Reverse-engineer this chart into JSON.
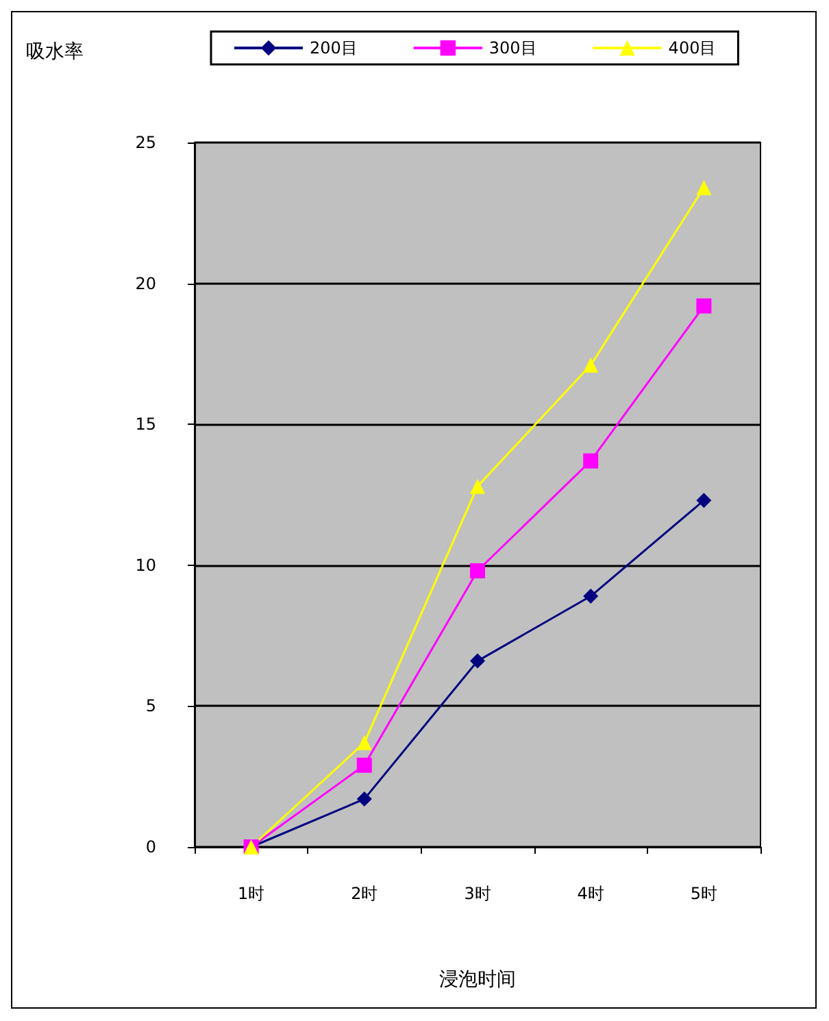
{
  "chart_data": {
    "type": "line",
    "xlabel": "浸泡时间",
    "ylabel": "吸水率",
    "categories": [
      "1时",
      "2时",
      "3时",
      "4时",
      "5时"
    ],
    "series": [
      {
        "name": "200目",
        "color": "#000080",
        "marker": "diamond",
        "values": [
          0,
          1.7,
          6.6,
          8.9,
          12.3
        ]
      },
      {
        "name": "300目",
        "color": "#ff00ff",
        "marker": "square",
        "values": [
          0,
          2.9,
          9.8,
          13.7,
          19.2
        ]
      },
      {
        "name": "400目",
        "color": "#ffff00",
        "marker": "triangle",
        "values": [
          0,
          3.7,
          12.8,
          17.1,
          23.4
        ]
      }
    ],
    "ylim": [
      0,
      25
    ],
    "yticks": [
      0,
      5,
      10,
      15,
      20,
      25
    ],
    "grid": "y",
    "legend": "top",
    "line_style": "solid"
  }
}
